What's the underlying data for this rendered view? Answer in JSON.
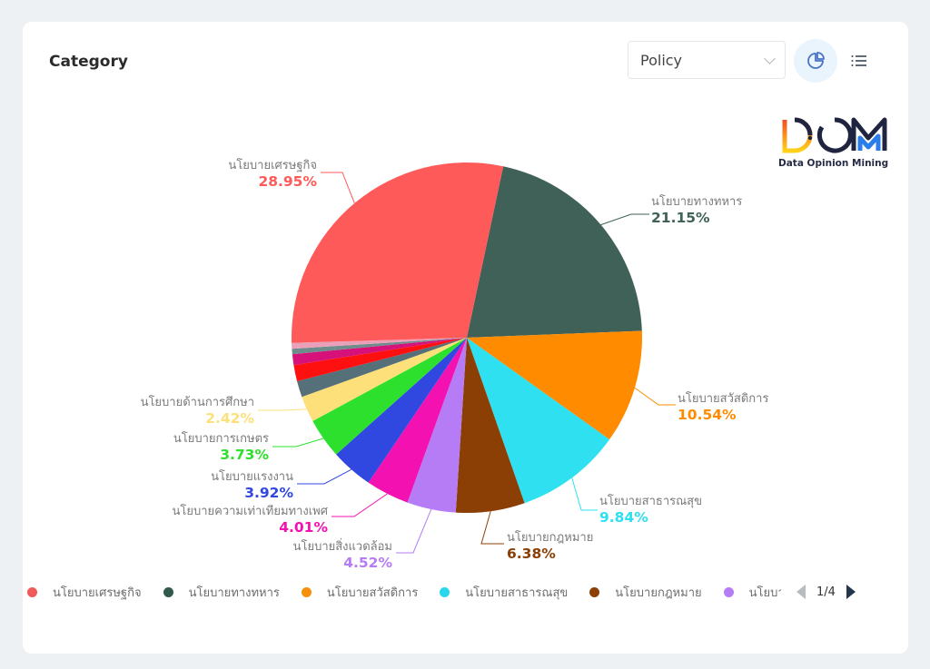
{
  "header": {
    "title": "Category",
    "select_value": "Policy",
    "pie_view_icon": "pie-chart-icon",
    "list_view_icon": "list-icon"
  },
  "logo": {
    "text": "DOM",
    "caption": "Data Opinion Mining"
  },
  "chart_data": {
    "type": "pie",
    "title": "Category",
    "start_angle_deg": 12,
    "slices": [
      {
        "label": "นโยบายทางทหาร",
        "value": 21.15,
        "pct_text": "21.15%",
        "color": "#3f6158",
        "labeled": true
      },
      {
        "label": "นโยบายสวัสดิการ",
        "value": 10.54,
        "pct_text": "10.54%",
        "color": "#ff8c00",
        "labeled": true
      },
      {
        "label": "นโยบายสาธารณสุข",
        "value": 9.84,
        "pct_text": "9.84%",
        "color": "#2ee0f0",
        "labeled": true
      },
      {
        "label": "นโยบายกฎหมาย",
        "value": 6.38,
        "pct_text": "6.38%",
        "color": "#8b3f05",
        "labeled": true
      },
      {
        "label": "นโยบายสิ่งแวดล้อม",
        "value": 4.52,
        "pct_text": "4.52%",
        "color": "#b57cf5",
        "labeled": true
      },
      {
        "label": "นโยบายความเท่าเทียมทางเพศ",
        "value": 4.01,
        "pct_text": "4.01%",
        "color": "#f311b2",
        "labeled": true
      },
      {
        "label": "นโยบายแรงงาน",
        "value": 3.92,
        "pct_text": "3.92%",
        "color": "#3148e0",
        "labeled": true
      },
      {
        "label": "นโยบายการเกษตร",
        "value": 3.73,
        "pct_text": "3.73%",
        "color": "#2ee02e",
        "labeled": true
      },
      {
        "label": "นโยบายด้านการศึกษา",
        "value": 2.42,
        "pct_text": "2.42%",
        "color": "#fde07a",
        "labeled": true
      },
      {
        "label": "",
        "value": 1.5,
        "color": "#56707a",
        "labeled": false
      },
      {
        "label": "",
        "value": 1.5,
        "color": "#ff1010",
        "labeled": false
      },
      {
        "label": "",
        "value": 1.0,
        "color": "#d6127a",
        "labeled": false
      },
      {
        "label": "",
        "value": 0.5,
        "color": "#6f8c8c",
        "labeled": false
      },
      {
        "label": "",
        "value": 0.54,
        "color": "#e9a0b8",
        "labeled": false
      },
      {
        "label": "นโยบายเศรษฐกิจ",
        "value": 28.95,
        "pct_text": "28.95%",
        "color": "#ff5a5a",
        "labeled": true
      }
    ]
  },
  "legend": {
    "items": [
      {
        "label": "นโยบายเศรษฐกิจ",
        "color": "#f05a5a"
      },
      {
        "label": "นโยบายทางทหาร",
        "color": "#2f5a4c"
      },
      {
        "label": "นโยบายสวัสดิการ",
        "color": "#f5900c"
      },
      {
        "label": "นโยบายสาธารณสุข",
        "color": "#2ad6ea"
      },
      {
        "label": "นโยบายกฎหมาย",
        "color": "#8b3f05"
      },
      {
        "label": "นโยบายสิ่งแวดล้อม",
        "color": "#b57cf5"
      }
    ],
    "page": "1/4"
  }
}
